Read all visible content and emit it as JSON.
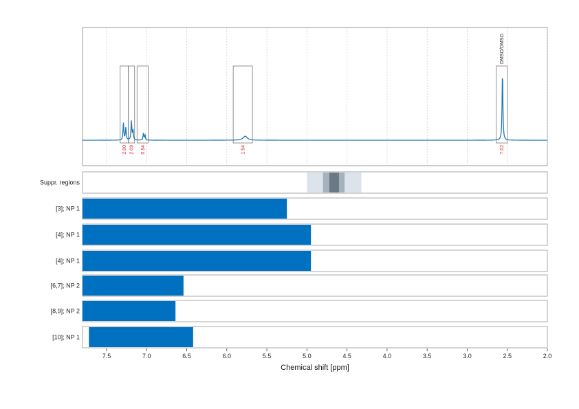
{
  "chart_data": {
    "type": "spectrum_with_ranges",
    "xlabel": "Chemical shift [ppm]",
    "xlim": [
      7.8,
      2.0
    ],
    "x_ticks": [
      "7.5",
      "7.0",
      "6.5",
      "6.0",
      "5.5",
      "5.0",
      "4.5",
      "4.0",
      "3.5",
      "3.0",
      "2.5",
      "2.0"
    ],
    "x_tick_values": [
      7.5,
      7.0,
      6.5,
      6.0,
      5.5,
      5.0,
      4.5,
      4.0,
      3.5,
      3.0,
      2.5,
      2.0
    ],
    "grid": true,
    "spectrum": {
      "color": "#1f77b4",
      "peaks": [
        {
          "ppm": 7.29,
          "height": 0.25
        },
        {
          "ppm": 7.26,
          "height": 0.18
        },
        {
          "ppm": 7.19,
          "height": 0.28
        },
        {
          "ppm": 7.17,
          "height": 0.14
        },
        {
          "ppm": 7.04,
          "height": 0.1
        },
        {
          "ppm": 7.02,
          "height": 0.07
        },
        {
          "ppm": 5.77,
          "height": 0.06
        },
        {
          "ppm": 2.56,
          "height": 1.0
        }
      ],
      "integration_regions": [
        {
          "from": 7.33,
          "to": 7.23,
          "label": "2.00"
        },
        {
          "from": 7.23,
          "to": 7.15,
          "label": "2.09"
        },
        {
          "from": 7.12,
          "to": 6.98,
          "label": "0.94"
        },
        {
          "from": 5.92,
          "to": 5.68,
          "label": "1.54"
        },
        {
          "from": 2.64,
          "to": 2.5,
          "label": "7.02",
          "annotation": "DMSO/DMSO"
        }
      ]
    },
    "rows": [
      {
        "label": "Suppr. regions",
        "type": "suppression",
        "bands": [
          {
            "from": 5.0,
            "to": 4.32,
            "color": "#dde3ea"
          },
          {
            "from": 4.8,
            "to": 4.53,
            "color": "#a5b1bd"
          },
          {
            "from": 4.72,
            "to": 4.6,
            "color": "#6b7985"
          }
        ]
      },
      {
        "label": "[3]; NP 1",
        "from": 7.8,
        "to": 5.25,
        "color": "#0070c0"
      },
      {
        "label": "[4]; NP 1",
        "from": 7.8,
        "to": 4.95,
        "color": "#0070c0"
      },
      {
        "label": "[4]; NP 1",
        "from": 7.8,
        "to": 4.95,
        "color": "#0070c0"
      },
      {
        "label": "[6,7]; NP 2",
        "from": 7.8,
        "to": 6.54,
        "color": "#0070c0"
      },
      {
        "label": "[8,9]; NP 2",
        "from": 7.8,
        "to": 6.64,
        "color": "#0070c0"
      },
      {
        "label": "[10]; NP 1",
        "from": 7.72,
        "to": 6.42,
        "color": "#0070c0"
      }
    ]
  }
}
